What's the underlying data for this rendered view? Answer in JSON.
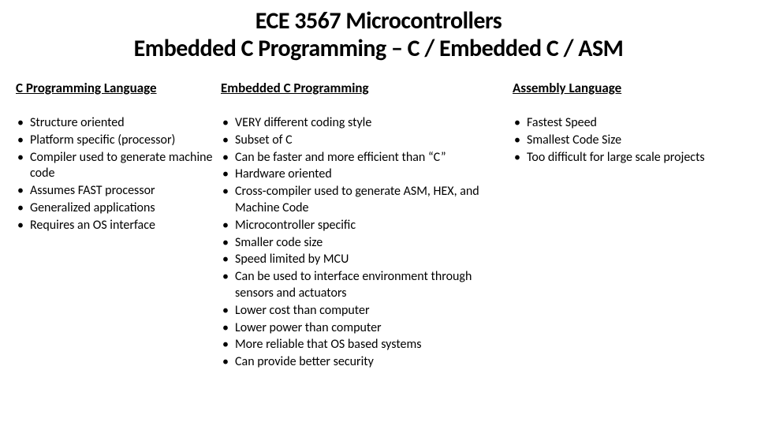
{
  "title": {
    "line1": "ECE 3567 Microcontrollers",
    "line2": "Embedded C Programming – C / Embedded C / ASM"
  },
  "columns": {
    "c_lang": {
      "heading": "C Programming Language",
      "items": [
        "Structure oriented",
        "Platform specific (processor)",
        "Compiler used to generate machine code",
        "Assumes FAST processor",
        "Generalized applications",
        "Requires an OS interface"
      ]
    },
    "embedded_c": {
      "heading": "Embedded C Programming",
      "items": [
        "VERY different coding style",
        "Subset of C",
        "Can be faster and more efficient than “C”",
        "Hardware oriented",
        "Cross-compiler used to generate ASM, HEX, and Machine Code",
        "Microcontroller specific",
        "Smaller code size",
        "Speed limited by MCU",
        "Can be used to interface environment through sensors and actuators",
        "Lower cost than computer",
        "Lower power than computer",
        "More reliable that OS based systems",
        "Can provide better security"
      ]
    },
    "asm": {
      "heading": "Assembly Language",
      "items": [
        "Fastest Speed",
        "Smallest Code Size",
        "Too difficult for large scale projects"
      ]
    }
  }
}
